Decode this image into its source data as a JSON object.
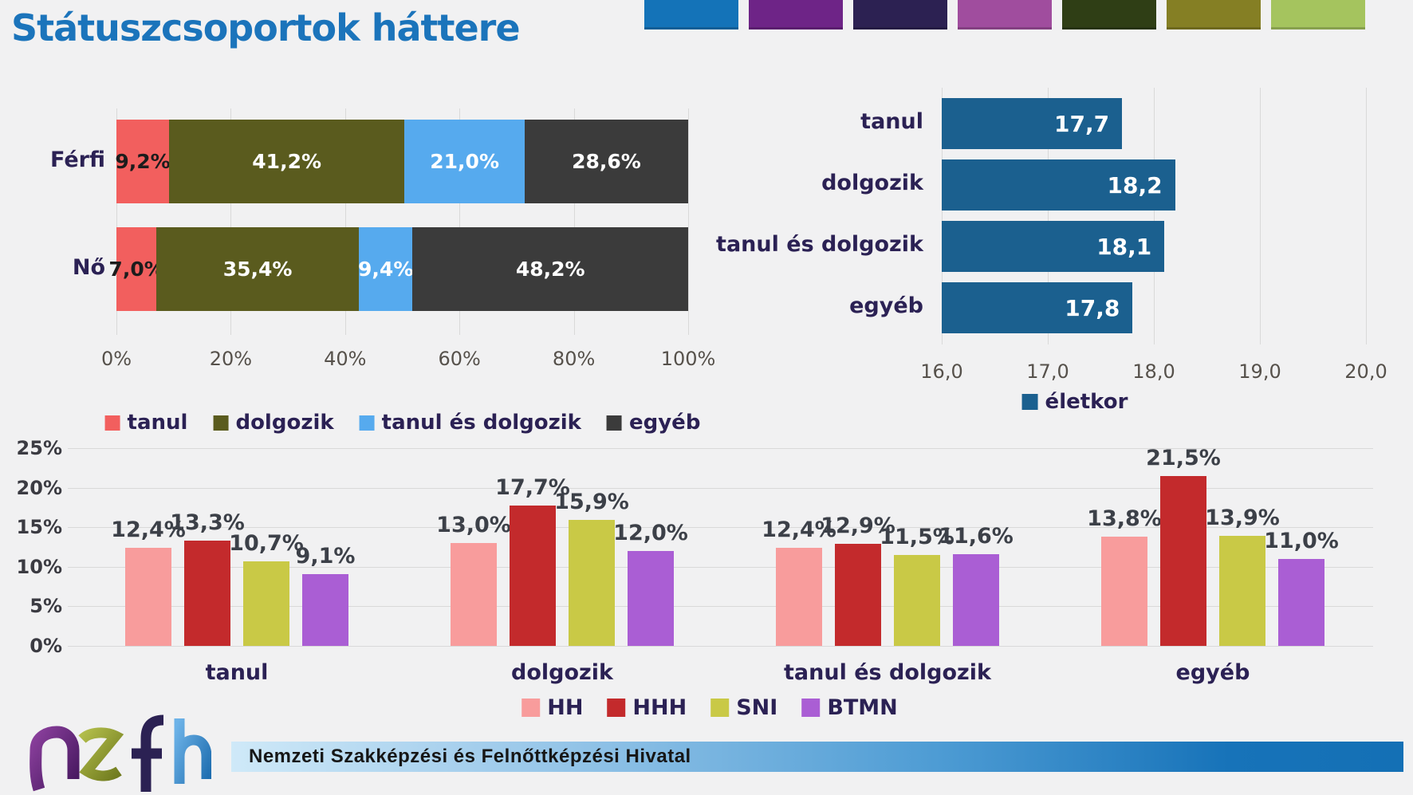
{
  "title": "Státuszcsoportok háttere",
  "title_color": "#1b74bb",
  "theme_swatches": [
    "#1473b8",
    "#6e2487",
    "#2c2152",
    "#a04d9e",
    "#2f3e15",
    "#857f24",
    "#a5c45e"
  ],
  "footer": {
    "logo_name": "nszfh-logo",
    "org_name": "Nemzeti Szakképzési és Felnőttképzési Hivatal"
  },
  "chart_data": [
    {
      "id": "status-by-gender",
      "type": "bar",
      "subtype": "stacked-horizontal",
      "categories": [
        "Férfi",
        "Nő"
      ],
      "series": [
        {
          "name": "tanul",
          "color": "#f25f5e",
          "values": [
            9.2,
            7.0
          ]
        },
        {
          "name": "dolgozik",
          "color": "#5a5b1e",
          "values": [
            41.2,
            35.4
          ]
        },
        {
          "name": "tanul és dolgozik",
          "color": "#56aaee",
          "values": [
            21.0,
            9.4
          ]
        },
        {
          "name": "egyéb",
          "color": "#3b3b3b",
          "values": [
            28.6,
            48.2
          ]
        }
      ],
      "data_labels": [
        [
          "9,2%",
          "41,2%",
          "21,0%",
          "28,6%"
        ],
        [
          "7,0%",
          "35,4%",
          "9,4%",
          "48,2%"
        ]
      ],
      "x_ticks": [
        "0%",
        "20%",
        "40%",
        "60%",
        "80%",
        "100%"
      ],
      "xlim": [
        0,
        100
      ],
      "legend_position": "bottom",
      "grid": true
    },
    {
      "id": "age-by-status",
      "type": "bar",
      "subtype": "horizontal",
      "categories": [
        "tanul",
        "dolgozik",
        "tanul és dolgozik",
        "egyéb"
      ],
      "series": [
        {
          "name": "életkor",
          "color": "#1b608f",
          "values": [
            17.7,
            18.2,
            18.1,
            17.8
          ]
        }
      ],
      "data_labels": [
        "17,7",
        "18,2",
        "18,1",
        "17,8"
      ],
      "x_ticks": [
        "16,0",
        "17,0",
        "18,0",
        "19,0",
        "20,0"
      ],
      "xlim": [
        16,
        20
      ],
      "legend_position": "bottom",
      "grid": true
    },
    {
      "id": "disadvantage-by-status",
      "type": "bar",
      "subtype": "grouped-vertical",
      "categories": [
        "tanul",
        "dolgozik",
        "tanul és dolgozik",
        "egyéb"
      ],
      "series": [
        {
          "name": "HH",
          "color": "#f89c9c",
          "values": [
            12.4,
            13.0,
            12.4,
            13.8
          ]
        },
        {
          "name": "HHH",
          "color": "#c32a2c",
          "values": [
            13.3,
            17.7,
            12.9,
            21.5
          ]
        },
        {
          "name": "SNI",
          "color": "#c9c946",
          "values": [
            10.7,
            15.9,
            11.5,
            13.9
          ]
        },
        {
          "name": "BTMN",
          "color": "#aa5ed4",
          "values": [
            9.1,
            12.0,
            11.6,
            11.0
          ]
        }
      ],
      "data_labels": [
        [
          "12,4%",
          "13,3%",
          "10,7%",
          "9,1%"
        ],
        [
          "13,0%",
          "17,7%",
          "15,9%",
          "12,0%"
        ],
        [
          "12,4%",
          "12,9%",
          "11,5%",
          "11,6%"
        ],
        [
          "13,8%",
          "21,5%",
          "13,9%",
          "11,0%"
        ]
      ],
      "y_ticks": [
        "0%",
        "5%",
        "10%",
        "15%",
        "20%",
        "25%"
      ],
      "ylim": [
        0,
        25
      ],
      "legend_position": "bottom",
      "grid": true
    }
  ]
}
